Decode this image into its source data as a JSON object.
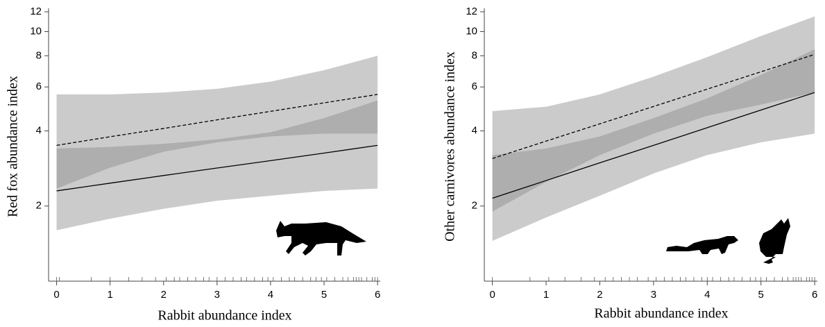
{
  "chart_data": [
    {
      "type": "line",
      "xlabel": "Rabbit abundance index",
      "ylabel": "Red fox abundance index",
      "x": [
        0,
        1,
        2,
        3,
        4,
        5,
        6
      ],
      "series": [
        {
          "color": "#000000",
          "dash": false,
          "values": [
            2.3,
            2.47,
            2.65,
            2.84,
            3.04,
            3.26,
            3.5
          ],
          "lower": [
            1.6,
            1.78,
            1.95,
            2.1,
            2.2,
            2.3,
            2.35
          ],
          "upper": [
            3.4,
            3.45,
            3.55,
            3.7,
            3.95,
            4.5,
            5.3
          ]
        },
        {
          "color": "#000000",
          "dash": true,
          "values": [
            3.5,
            3.79,
            4.09,
            4.43,
            4.79,
            5.18,
            5.6
          ],
          "lower": [
            2.35,
            2.85,
            3.3,
            3.6,
            3.8,
            3.9,
            3.9
          ],
          "upper": [
            5.6,
            5.6,
            5.7,
            5.9,
            6.3,
            7.0,
            8.0
          ]
        }
      ],
      "band_color": "#8c8c8c",
      "log_y": true,
      "xlim": [
        -0.15,
        6.05
      ],
      "xticks": [
        0,
        1,
        2,
        3,
        4,
        5,
        6
      ],
      "ylim": [
        1,
        12
      ],
      "yticks": [
        2,
        4,
        6,
        8,
        10,
        12
      ],
      "rug": [
        0,
        0.05,
        0.65,
        1.0,
        1.35,
        1.6,
        1.85,
        2.05,
        2.2,
        2.3,
        2.45,
        2.6,
        2.75,
        2.85,
        3.0,
        3.15,
        3.3,
        3.45,
        3.55,
        3.7,
        3.85,
        3.95,
        4.05,
        4.2,
        4.35,
        4.45,
        4.6,
        4.75,
        4.85,
        4.95,
        5.05,
        5.2,
        5.35,
        5.45,
        5.55,
        5.6,
        5.65,
        5.7,
        5.8,
        5.9,
        5.95,
        6.0
      ]
    },
    {
      "type": "line",
      "xlabel": "Rabbit abundance index",
      "ylabel": "Other carnivores abundance index",
      "x": [
        0,
        1,
        2,
        3,
        4,
        5,
        6
      ],
      "series": [
        {
          "color": "#000000",
          "dash": false,
          "values": [
            2.15,
            2.53,
            2.98,
            3.5,
            4.12,
            4.85,
            5.7
          ],
          "lower": [
            1.45,
            1.8,
            2.2,
            2.7,
            3.2,
            3.6,
            3.9
          ],
          "upper": [
            3.2,
            3.4,
            3.8,
            4.5,
            5.4,
            6.7,
            8.5
          ]
        },
        {
          "color": "#000000",
          "dash": true,
          "values": [
            3.1,
            3.64,
            4.27,
            5.01,
            5.88,
            6.9,
            8.1
          ],
          "lower": [
            1.9,
            2.5,
            3.2,
            3.9,
            4.6,
            5.1,
            5.7
          ],
          "upper": [
            4.8,
            5.0,
            5.6,
            6.6,
            7.9,
            9.6,
            11.5
          ]
        }
      ],
      "band_color": "#8c8c8c",
      "log_y": true,
      "xlim": [
        -0.15,
        6.05
      ],
      "xticks": [
        0,
        1,
        2,
        3,
        4,
        5,
        6
      ],
      "ylim": [
        1,
        12
      ],
      "yticks": [
        2,
        4,
        6,
        8,
        10,
        12
      ],
      "rug": [
        0,
        0.7,
        1.05,
        1.35,
        1.65,
        1.9,
        2.1,
        2.25,
        2.4,
        2.55,
        2.7,
        2.9,
        3.05,
        3.2,
        3.35,
        3.5,
        3.6,
        3.75,
        3.9,
        4.0,
        4.1,
        4.25,
        4.4,
        4.5,
        4.65,
        4.8,
        4.9,
        5.0,
        5.1,
        5.25,
        5.4,
        5.5,
        5.6,
        5.65,
        5.7,
        5.75,
        5.85,
        5.9,
        5.95,
        6.0
      ]
    }
  ]
}
